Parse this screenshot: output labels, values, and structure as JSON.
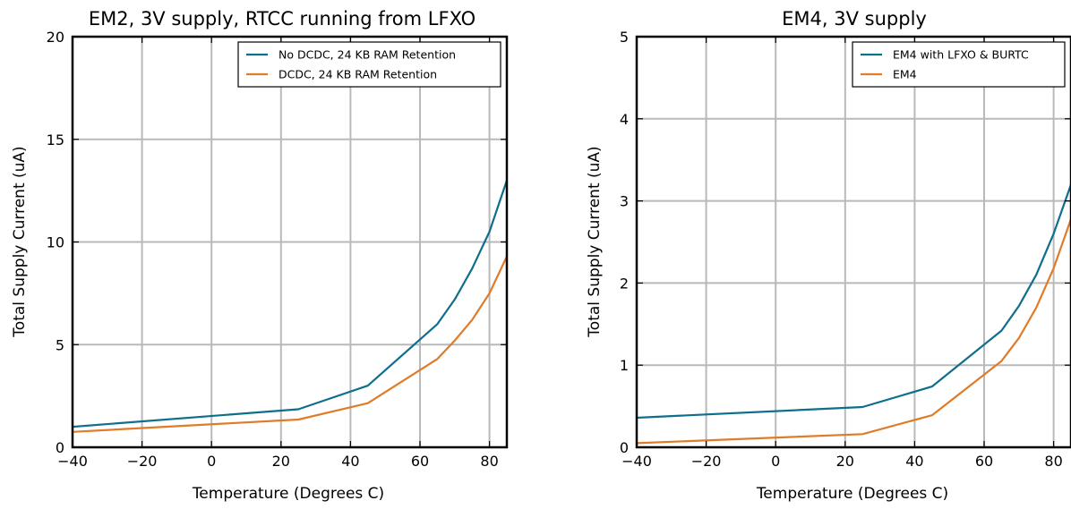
{
  "chart_data": [
    {
      "type": "line",
      "title": "EM2, 3V supply, RTCC running from LFXO",
      "xlabel": "Temperature (Degrees C)",
      "ylabel": "Total Supply Current (uA)",
      "xlim": [
        -40,
        85
      ],
      "ylim": [
        0,
        20
      ],
      "xticks": [
        -40,
        -20,
        0,
        20,
        40,
        60,
        80
      ],
      "yticks": [
        0,
        5,
        10,
        15,
        20
      ],
      "xtick_labels": [
        "−40",
        "−20",
        "0",
        "20",
        "40",
        "60",
        "80"
      ],
      "ytick_labels": [
        "0",
        "5",
        "10",
        "15",
        "20"
      ],
      "grid": true,
      "legend_position": "top-right",
      "series": [
        {
          "name": "No DCDC, 24 KB RAM Retention",
          "color": "#0e6f8c",
          "x": [
            -40,
            25,
            45,
            65,
            70,
            75,
            80,
            85
          ],
          "y": [
            1.0,
            1.85,
            3.0,
            6.0,
            7.2,
            8.7,
            10.5,
            13.0
          ]
        },
        {
          "name": "DCDC, 24 KB RAM Retention",
          "color": "#e07b28",
          "x": [
            -40,
            25,
            45,
            65,
            70,
            75,
            80,
            85
          ],
          "y": [
            0.75,
            1.35,
            2.15,
            4.3,
            5.2,
            6.2,
            7.5,
            9.3
          ]
        }
      ]
    },
    {
      "type": "line",
      "title": "EM4, 3V supply",
      "xlabel": "Temperature (Degrees C)",
      "ylabel": "Total Supply Current (uA)",
      "xlim": [
        -40,
        85
      ],
      "ylim": [
        0,
        5
      ],
      "xticks": [
        -40,
        -20,
        0,
        20,
        40,
        60,
        80
      ],
      "yticks": [
        0,
        1,
        2,
        3,
        4,
        5
      ],
      "xtick_labels": [
        "−40",
        "−20",
        "0",
        "20",
        "40",
        "60",
        "80"
      ],
      "ytick_labels": [
        "0",
        "1",
        "2",
        "3",
        "4",
        "5"
      ],
      "grid": true,
      "legend_position": "top-right",
      "series": [
        {
          "name": "EM4 with LFXO & BURTC",
          "color": "#0e6f8c",
          "x": [
            -40,
            25,
            45,
            65,
            70,
            75,
            80,
            85
          ],
          "y": [
            0.36,
            0.49,
            0.74,
            1.42,
            1.72,
            2.1,
            2.6,
            3.2
          ]
        },
        {
          "name": "EM4",
          "color": "#e07b28",
          "x": [
            -40,
            25,
            45,
            65,
            70,
            75,
            80,
            85
          ],
          "y": [
            0.05,
            0.16,
            0.39,
            1.05,
            1.33,
            1.7,
            2.18,
            2.78
          ]
        }
      ]
    }
  ]
}
